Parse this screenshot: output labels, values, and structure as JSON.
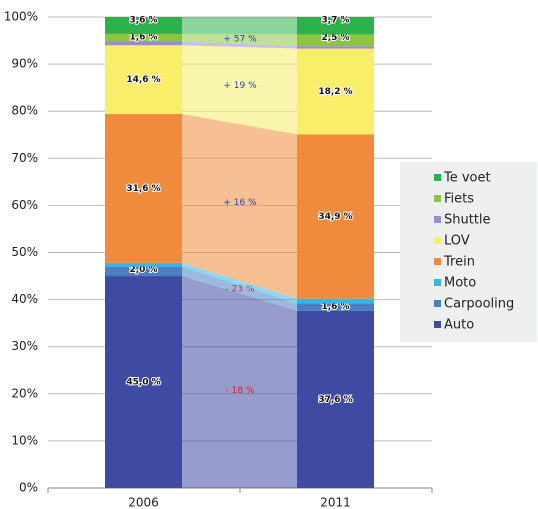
{
  "chart_data": {
    "type": "stacked_bar",
    "categories": [
      "2006",
      "2011"
    ],
    "ylim": [
      0,
      100
    ],
    "yticks": [
      {
        "value": 0,
        "label": "0%"
      },
      {
        "value": 10,
        "label": "10%"
      },
      {
        "value": 20,
        "label": "20%"
      },
      {
        "value": 30,
        "label": "30%"
      },
      {
        "value": 40,
        "label": "40%"
      },
      {
        "value": 50,
        "label": "50%"
      },
      {
        "value": 60,
        "label": "60%"
      },
      {
        "value": 70,
        "label": "70%"
      },
      {
        "value": 80,
        "label": "80%"
      },
      {
        "value": 90,
        "label": "90%"
      },
      {
        "value": 100,
        "label": "100%"
      }
    ],
    "grid": true,
    "legend": "right",
    "series": [
      {
        "name": "Auto",
        "color": "#3f4aa3",
        "values": [
          45.0,
          37.6
        ],
        "value_labels": [
          "45,0 %",
          "37,6 %"
        ],
        "change": "- 18 %",
        "change_color": "#e8202a"
      },
      {
        "name": "Carpooling",
        "color": "#4a7fc4",
        "values": [
          2.0,
          1.6
        ],
        "value_labels": [
          "2,0 %",
          "1,6 %"
        ],
        "change": "- 23 %",
        "change_color": "#e8202a"
      },
      {
        "name": "Moto",
        "color": "#2fb8e8",
        "values": [
          0.8,
          1.0
        ],
        "value_labels": [
          null,
          null
        ]
      },
      {
        "name": "Trein",
        "color": "#f08a3c",
        "values": [
          31.6,
          34.9
        ],
        "value_labels": [
          "31,6 %",
          "34,9 %"
        ],
        "change": "+ 16 %",
        "change_color": "#2a3fb0"
      },
      {
        "name": "LOV",
        "color": "#f8ee6a",
        "values": [
          14.6,
          18.2
        ],
        "value_labels": [
          "14,6 %",
          "18,2 %"
        ],
        "change": "+ 19 %",
        "change_color": "#2a3fb0"
      },
      {
        "name": "Shuttle",
        "color": "#9a8ad0",
        "values": [
          0.8,
          0.5
        ],
        "value_labels": [
          null,
          null
        ]
      },
      {
        "name": "Fiets",
        "color": "#8cc63f",
        "values": [
          1.6,
          2.5
        ],
        "value_labels": [
          "1,6 %",
          "2,5 %"
        ],
        "change": "+ 57 %",
        "change_color": "#2a3fb0"
      },
      {
        "name": "Te voet",
        "color": "#2bb24c",
        "values": [
          3.6,
          3.7
        ],
        "value_labels": [
          "3,6 %",
          "3,7 %"
        ]
      }
    ]
  }
}
